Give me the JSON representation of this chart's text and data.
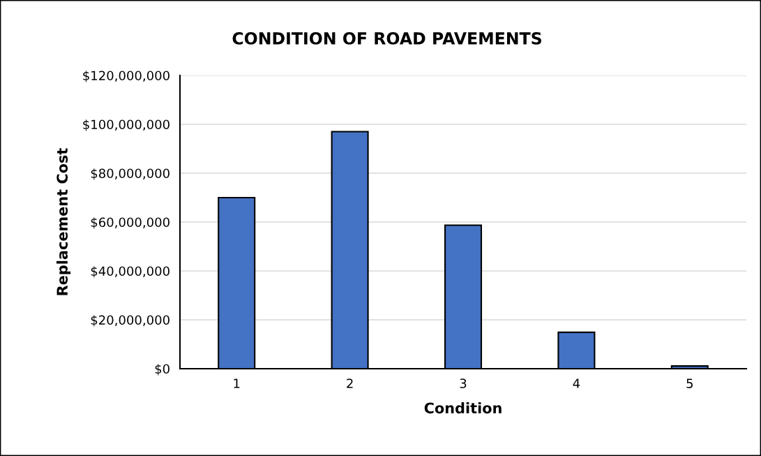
{
  "chart_data": {
    "type": "bar",
    "title": "CONDITION OF ROAD PAVEMENTS",
    "xlabel": "Condition",
    "ylabel": "Replacement Cost",
    "categories": [
      "1",
      "2",
      "3",
      "4",
      "5"
    ],
    "values": [
      70000000,
      97000000,
      58700000,
      14900000,
      1100000
    ],
    "color": "#4472c4",
    "ylim": [
      0,
      120000000
    ],
    "yticks": [
      {
        "value": 0,
        "label": "$0"
      },
      {
        "value": 20000000,
        "label": "$20,000,000"
      },
      {
        "value": 40000000,
        "label": "$40,000,000"
      },
      {
        "value": 60000000,
        "label": "$60,000,000"
      },
      {
        "value": 80000000,
        "label": "$80,000,000"
      },
      {
        "value": 100000000,
        "label": "$100,000,000"
      },
      {
        "value": 120000000,
        "label": "$120,000,000"
      }
    ],
    "grid": "y"
  }
}
